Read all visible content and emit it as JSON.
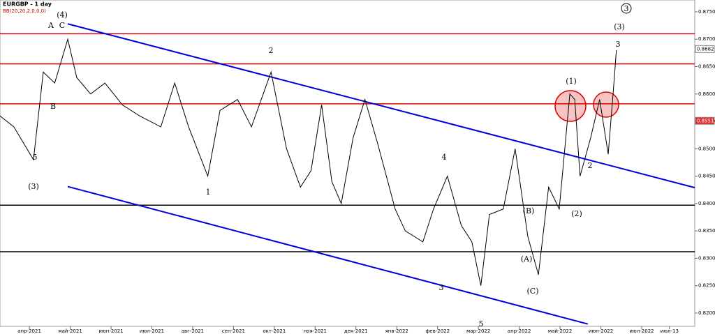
{
  "chart_data": {
    "type": "line",
    "title": "EURGBP - 1 day",
    "indicator": "BB(20,20,2.0,0,0)",
    "color": "#000000",
    "x": [
      -0.72,
      -0.38,
      0.1,
      0.34,
      0.62,
      0.94,
      1.16,
      1.5,
      1.85,
      2.28,
      2.7,
      3.22,
      3.56,
      3.9,
      4.37,
      4.67,
      5.1,
      5.44,
      5.92,
      6.3,
      6.64,
      6.9,
      7.16,
      7.41,
      7.64,
      7.93,
      8.22,
      8.53,
      8.96,
      9.21,
      9.64,
      9.9,
      10.24,
      10.58,
      10.84,
      11.06,
      11.27,
      11.61,
      11.9,
      12.21,
      12.47,
      12.72,
      12.98,
      13.24,
      13.36,
      13.49,
      13.75,
      13.97,
      14.18,
      14.32,
      14.38
    ],
    "values": [
      0.856,
      0.854,
      0.848,
      0.864,
      0.862,
      0.87,
      0.863,
      0.86,
      0.862,
      0.858,
      0.856,
      0.854,
      0.862,
      0.854,
      0.845,
      0.857,
      0.859,
      0.854,
      0.864,
      0.85,
      0.843,
      0.846,
      0.858,
      0.844,
      0.84,
      0.852,
      0.859,
      0.851,
      0.839,
      0.835,
      0.833,
      0.839,
      0.845,
      0.836,
      0.833,
      0.825,
      0.838,
      0.839,
      0.85,
      0.834,
      0.827,
      0.843,
      0.839,
      0.86,
      0.859,
      0.845,
      0.852,
      0.859,
      0.849,
      0.862,
      0.868
    ],
    "xlim": [
      -0.72,
      16.3
    ],
    "xticks": [
      {
        "value": 0,
        "label": "апр-2021"
      },
      {
        "value": 1,
        "label": "май-2021"
      },
      {
        "value": 2,
        "label": "июн-2021"
      },
      {
        "value": 3,
        "label": "июл-2021"
      },
      {
        "value": 4,
        "label": "авг-2021"
      },
      {
        "value": 5,
        "label": "сен-2021"
      },
      {
        "value": 6,
        "label": "окт-2021"
      },
      {
        "value": 7,
        "label": "ноя-2021"
      },
      {
        "value": 8,
        "label": "дек-2021"
      },
      {
        "value": 9,
        "label": "янв-2022"
      },
      {
        "value": 10,
        "label": "фев-2022"
      },
      {
        "value": 11,
        "label": "мар-2022"
      },
      {
        "value": 12,
        "label": "апр-2022"
      },
      {
        "value": 13,
        "label": "май-2022"
      },
      {
        "value": 14,
        "label": "июн-2022"
      },
      {
        "value": 15,
        "label": "июл-2022"
      },
      {
        "value": 15.68,
        "label": "июл-13"
      }
    ],
    "ylim": [
      0.81758,
      0.87716
    ],
    "yticks": [
      {
        "value": 0.82,
        "label": "0.8200"
      },
      {
        "value": 0.825,
        "label": "0.8250"
      },
      {
        "value": 0.83,
        "label": "0.8300"
      },
      {
        "value": 0.835,
        "label": "0.8350"
      },
      {
        "value": 0.84,
        "label": "0.8400"
      },
      {
        "value": 0.845,
        "label": "0.8450"
      },
      {
        "value": 0.85,
        "label": "0.8500"
      },
      {
        "value": 0.855,
        "label": "0.8550"
      },
      {
        "value": 0.86,
        "label": "0.8600"
      },
      {
        "value": 0.865,
        "label": "0.8650"
      },
      {
        "value": 0.87,
        "label": "0.8700"
      },
      {
        "value": 0.875,
        "label": "0.8750"
      }
    ],
    "levels": [
      {
        "value": 0.871,
        "color": "#e00000"
      },
      {
        "value": 0.8655,
        "color": "#e00000"
      },
      {
        "value": 0.8582,
        "color": "#e00000"
      },
      {
        "value": 0.8397,
        "color": "#000000"
      },
      {
        "value": 0.8312,
        "color": "#000000"
      }
    ],
    "channels": [
      {
        "x": [
          0.94,
          16.3
        ],
        "values": [
          0.8728,
          0.8429
        ],
        "color": "#0000dd"
      },
      {
        "x": [
          0.94,
          13.68
        ],
        "values": [
          0.8431,
          0.818
        ],
        "color": "#0000dd"
      }
    ],
    "price_labels": [
      {
        "value": 0.8682,
        "color": "#ffffff"
      },
      {
        "value": 0.8551,
        "color": "#e03030"
      }
    ],
    "wave_labels": [
      "(4)",
      "A",
      "C",
      "B",
      "5",
      "(3)",
      "2",
      "1",
      "4",
      "3",
      "5",
      "(1)",
      "2",
      "(2)",
      "(3)",
      "3",
      "(B)",
      "(A)",
      "(C)",
      "3"
    ]
  }
}
